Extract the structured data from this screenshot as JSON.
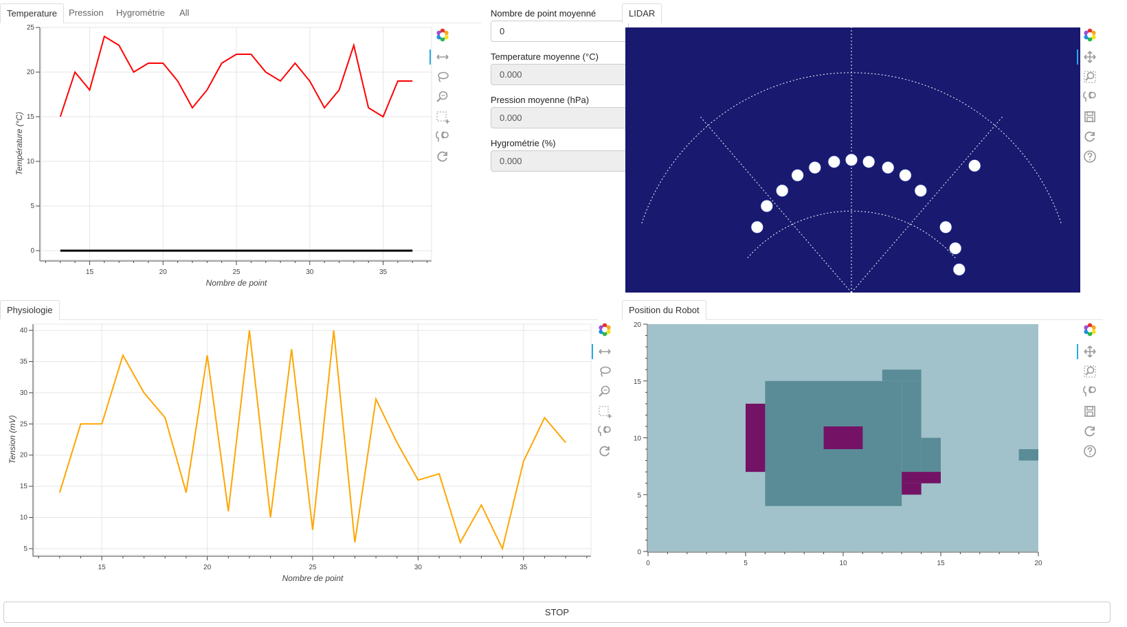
{
  "tabs_top_left": [
    "Temperature",
    "Pression",
    "Hygrométrie",
    "All"
  ],
  "tab_lidar": "LIDAR",
  "tab_physio": "Physiologie",
  "tab_robot": "Position du Robot",
  "form": {
    "avg_points_label": "Nombre de point moyenné",
    "avg_points_value": "0",
    "temp_label": "Temperature moyenne (°C)",
    "temp_value": "0.000",
    "pressure_label": "Pression moyenne (hPa)",
    "pressure_value": "0.000",
    "humidity_label": "Hygrométrie (%)",
    "humidity_value": "0.000"
  },
  "stop_label": "STOP",
  "colors": {
    "temperature_line": "#ff0000",
    "zero_line": "#000000",
    "tension_line": "#ffa500",
    "lidar_bg": "#191970",
    "map_free": "#a1c2ca",
    "map_occupied": "#5a8c97",
    "map_marker": "#741266",
    "toolbar_accent": "#26aae1"
  },
  "toolbar_left": [
    "bokeh-logo-icon",
    "pan-x-icon",
    "lasso-icon",
    "wheel-zoom-icon",
    "box-select-icon",
    "hover-icon",
    "reset-icon"
  ],
  "toolbar_right": [
    "bokeh-logo-icon",
    "pan-icon",
    "box-zoom-icon",
    "hover-icon",
    "save-icon",
    "reset-icon",
    "help-icon"
  ],
  "chart_data": [
    {
      "type": "line",
      "xlabel": "Nombre de point",
      "ylabel": "Température (°C)",
      "xlim": [
        11.7,
        38.3
      ],
      "ylim": [
        -1,
        25
      ],
      "xticks": [
        15,
        20,
        25,
        30,
        35
      ],
      "yticks": [
        0,
        5,
        10,
        15,
        20,
        25
      ],
      "x": [
        13,
        14,
        15,
        16,
        17,
        18,
        19,
        20,
        21,
        22,
        23,
        24,
        25,
        26,
        27,
        28,
        29,
        30,
        31,
        32,
        33,
        34,
        35,
        36,
        37
      ],
      "series": [
        {
          "values": [
            15,
            20,
            18,
            24,
            23,
            20,
            21,
            21,
            19,
            16,
            18,
            21,
            22,
            22,
            20,
            19,
            21,
            19,
            16,
            18,
            23,
            16,
            15,
            19,
            19
          ]
        },
        {
          "values": [
            0,
            0,
            0,
            0,
            0,
            0,
            0,
            0,
            0,
            0,
            0,
            0,
            0,
            0,
            0,
            0,
            0,
            0,
            0,
            0,
            0,
            0,
            0,
            0,
            0
          ]
        }
      ],
      "grid": true
    },
    {
      "type": "line",
      "xlabel": "Nombre de point",
      "ylabel": "Tension (mV)",
      "xlim": [
        11.8,
        38.2
      ],
      "ylim": [
        4,
        41
      ],
      "xticks": [
        15,
        20,
        25,
        30,
        35
      ],
      "yticks": [
        5,
        10,
        15,
        20,
        25,
        30,
        35,
        40
      ],
      "x": [
        13,
        14,
        15,
        16,
        17,
        18,
        19,
        20,
        21,
        22,
        23,
        24,
        25,
        26,
        27,
        28,
        29,
        30,
        31,
        32,
        33,
        34,
        35,
        36,
        37
      ],
      "series": [
        {
          "values": [
            14,
            25,
            25,
            36,
            30,
            26,
            14,
            36,
            11,
            40,
            10,
            37,
            8,
            40,
            6,
            29,
            22,
            16,
            17,
            6,
            12,
            5,
            19,
            26,
            22
          ]
        }
      ],
      "grid": true
    },
    {
      "type": "scatter",
      "title": "LIDAR",
      "xlim": [
        -1.15,
        1.15
      ],
      "ylim": [
        0,
        1.38
      ],
      "points": [
        [
          -0.49,
          0.34
        ],
        [
          -0.44,
          0.45
        ],
        [
          -0.36,
          0.53
        ],
        [
          -0.28,
          0.61
        ],
        [
          -0.19,
          0.65
        ],
        [
          -0.09,
          0.68
        ],
        [
          0.0,
          0.69
        ],
        [
          0.09,
          0.68
        ],
        [
          0.19,
          0.65
        ],
        [
          0.28,
          0.61
        ],
        [
          0.36,
          0.53
        ],
        [
          0.49,
          0.34
        ],
        [
          0.64,
          0.66
        ],
        [
          0.54,
          0.23
        ],
        [
          0.56,
          0.12
        ]
      ],
      "grid": false
    },
    {
      "type": "heatmap",
      "xlim": [
        0,
        20
      ],
      "ylim": [
        0,
        20
      ],
      "xticks": [
        0,
        5,
        10,
        15,
        20
      ],
      "yticks": [
        0,
        5,
        10,
        15,
        20
      ],
      "cells": [
        {
          "x0": 6,
          "x1": 13,
          "y0": 4,
          "y1": 15,
          "value": 1
        },
        {
          "x0": 12,
          "x1": 14,
          "y0": 15,
          "y1": 16,
          "value": 1
        },
        {
          "x0": 13,
          "x1": 14,
          "y0": 5,
          "y1": 15,
          "value": 1
        },
        {
          "x0": 14,
          "x1": 15,
          "y0": 6,
          "y1": 10,
          "value": 1
        },
        {
          "x0": 19,
          "x1": 20,
          "y0": 8,
          "y1": 9,
          "value": 1
        },
        {
          "x0": 5,
          "x1": 6,
          "y0": 7,
          "y1": 13,
          "value": 2
        },
        {
          "x0": 9,
          "x1": 11,
          "y0": 9,
          "y1": 11,
          "value": 2
        },
        {
          "x0": 13,
          "x1": 15,
          "y0": 6,
          "y1": 7,
          "value": 2
        },
        {
          "x0": 13,
          "x1": 14,
          "y0": 5,
          "y1": 6,
          "value": 2
        }
      ],
      "grid": false
    }
  ]
}
